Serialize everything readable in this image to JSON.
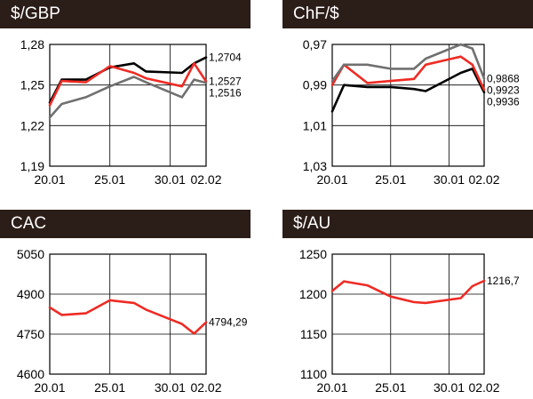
{
  "chart_data": [
    {
      "type": "line",
      "title": "$/GBP",
      "categories": [
        "20.01",
        "25.01",
        "30.01",
        "02.02"
      ],
      "yticks": [
        "1,28",
        "1,25",
        "1,22",
        "1,19"
      ],
      "ylim": [
        1.19,
        1.28
      ],
      "inverted": false,
      "x": [
        20,
        21,
        23,
        25,
        27,
        28,
        31,
        32,
        33
      ],
      "series": [
        {
          "color": "#000000",
          "values": [
            1.237,
            1.254,
            1.254,
            1.263,
            1.266,
            1.26,
            1.259,
            1.266,
            1.2704
          ],
          "end_label": "1,2704"
        },
        {
          "color": "#ee2b24",
          "values": [
            1.235,
            1.253,
            1.252,
            1.264,
            1.259,
            1.255,
            1.249,
            1.266,
            1.2527
          ],
          "end_label": "1,2527"
        },
        {
          "color": "#707070",
          "values": [
            1.226,
            1.236,
            1.241,
            1.249,
            1.256,
            1.252,
            1.241,
            1.254,
            1.2516
          ],
          "end_label": "1,2516"
        }
      ],
      "grid": true
    },
    {
      "type": "line",
      "title": "ChF/$",
      "categories": [
        "20.01",
        "25.01",
        "30.01",
        "02.02"
      ],
      "yticks": [
        "0,97",
        "0,99",
        "1,01",
        "1,03"
      ],
      "ylim": [
        0.97,
        1.03
      ],
      "inverted": true,
      "x": [
        20,
        21,
        23,
        25,
        27,
        28,
        31,
        32,
        33
      ],
      "series": [
        {
          "color": "#000000",
          "values": [
            1.003,
            0.99,
            0.991,
            0.991,
            0.992,
            0.993,
            0.984,
            0.982,
            0.9936
          ],
          "end_label": "0,9936"
        },
        {
          "color": "#ee2b24",
          "values": [
            0.99,
            0.98,
            0.989,
            0.988,
            0.987,
            0.98,
            0.976,
            0.98,
            0.9923
          ],
          "end_label": "0,9923"
        },
        {
          "color": "#707070",
          "values": [
            0.988,
            0.98,
            0.98,
            0.982,
            0.982,
            0.977,
            0.97,
            0.972,
            0.9868
          ],
          "end_label": "0,9868"
        }
      ],
      "grid": true
    },
    {
      "type": "line",
      "title": "CAC",
      "categories": [
        "20.01",
        "25.01",
        "30.01",
        "02.02"
      ],
      "yticks": [
        "5050",
        "4900",
        "4750",
        "4600"
      ],
      "ylim": [
        4600,
        5050
      ],
      "inverted": false,
      "x": [
        20,
        21,
        23,
        25,
        27,
        28,
        31,
        32,
        33
      ],
      "series": [
        {
          "color": "#ee2b24",
          "values": [
            4850,
            4822,
            4828,
            4877,
            4867,
            4842,
            4788,
            4752,
            4794.29
          ],
          "end_label": "4794,29"
        }
      ],
      "grid": true
    },
    {
      "type": "line",
      "title": "$/AU",
      "categories": [
        "20.01",
        "25.01",
        "30.01",
        "02.02"
      ],
      "yticks": [
        "1250",
        "1200",
        "1150",
        "1100"
      ],
      "ylim": [
        1100,
        1250
      ],
      "inverted": false,
      "x": [
        20,
        21,
        23,
        25,
        27,
        28,
        31,
        32,
        33
      ],
      "series": [
        {
          "color": "#ee2b24",
          "values": [
            1204,
            1216,
            1211,
            1197,
            1190,
            1189,
            1195,
            1210,
            1216.7
          ],
          "end_label": "1216,7"
        }
      ],
      "grid": true
    }
  ]
}
